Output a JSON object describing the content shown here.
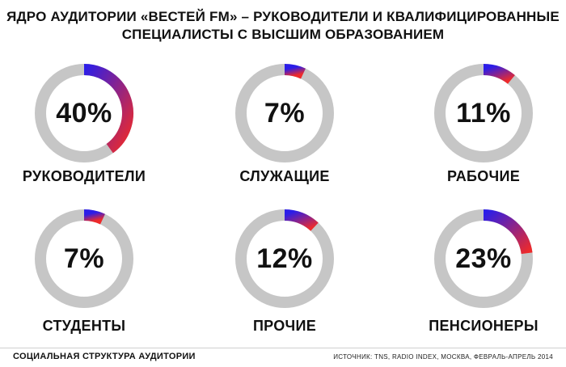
{
  "header": {
    "title_line1": "ЯДРО АУДИТОРИИ «ВЕСТЕЙ FM» – РУКОВОДИТЕЛИ И КВАЛИФИЦИРОВАННЫЕ",
    "title_line2": "СПЕЦИАЛИСТЫ С ВЫСШИМ ОБРАЗОВАНИЕМ"
  },
  "footer": {
    "caption": "СОЦИАЛЬНАЯ СТРУКТУРА АУДИТОРИИ",
    "source": "ИСТОЧНИК: TNS, RADIO INDEX, МОСКВА, ФЕВРАЛЬ-АПРЕЛЬ 2014"
  },
  "colors": {
    "track": "#c6c6c6",
    "gradient_start": "#2b1de8",
    "gradient_end": "#ee2a2a"
  },
  "chart_data": {
    "type": "donut",
    "title": "ЯДРО АУДИТОРИИ «ВЕСТЕЙ FM» – РУКОВОДИТЕЛИ И КВАЛИФИЦИРОВАННЫЕ СПЕЦИАЛИСТЫ С ВЫСШИМ ОБРАЗОВАНИЕМ",
    "unit": "%",
    "items": [
      {
        "label": "РУКОВОДИТЕЛИ",
        "value": 40,
        "value_text": "40%"
      },
      {
        "label": "СЛУЖАЩИЕ",
        "value": 7,
        "value_text": "7%"
      },
      {
        "label": "РАБОЧИЕ",
        "value": 11,
        "value_text": "11%"
      },
      {
        "label": "СТУДЕНТЫ",
        "value": 7,
        "value_text": "7%"
      },
      {
        "label": "ПРОЧИЕ",
        "value": 12,
        "value_text": "12%"
      },
      {
        "label": "ПЕНСИОНЕРЫ",
        "value": 23,
        "value_text": "23%"
      }
    ]
  }
}
